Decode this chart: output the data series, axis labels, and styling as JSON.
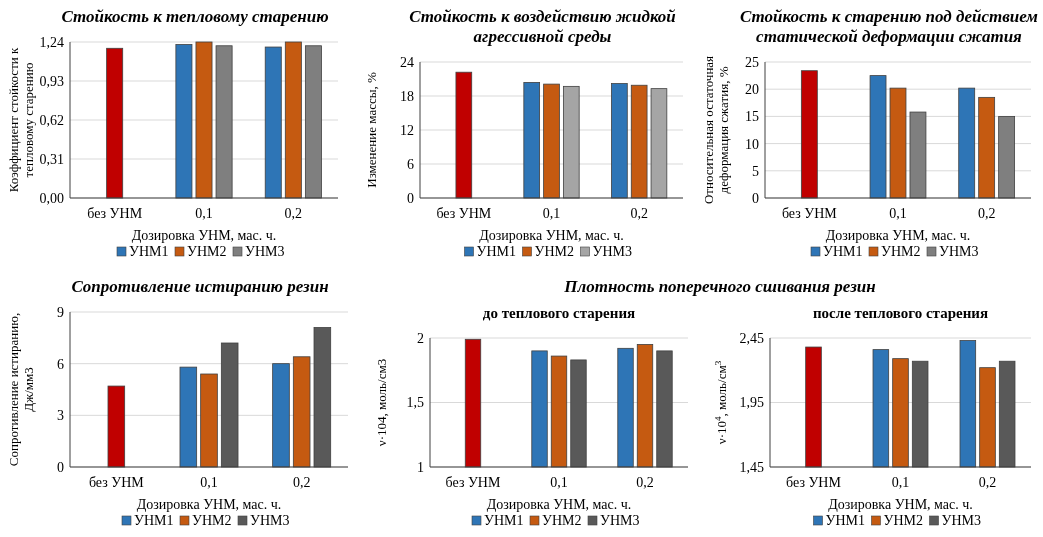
{
  "chart_data": [
    {
      "type": "bar",
      "title": "Стойкость к тепловому старению",
      "xlabel": "Дозировка УНМ, мас. ч.",
      "ylabel": "Коэффициент стойкости к тепловому старению",
      "categories": [
        "без УНМ",
        "0,1",
        "0,2"
      ],
      "series": [
        {
          "color": "#c00000",
          "values": [
            1.19,
            null,
            null
          ]
        },
        {
          "name": "УНМ1",
          "color": "#2e75b6",
          "values": [
            null,
            1.22,
            1.2
          ]
        },
        {
          "name": "УНМ2",
          "color": "#c55a11",
          "values": [
            null,
            1.24,
            1.24
          ]
        },
        {
          "name": "УНМ3",
          "color": "#7f7f7f",
          "values": [
            null,
            1.21,
            1.21
          ]
        }
      ],
      "ylim": [
        0,
        1.24
      ],
      "yticks": [
        {
          "value": 0,
          "label": "0,00"
        },
        {
          "value": 0.31,
          "label": "0,31"
        },
        {
          "value": 0.62,
          "label": "0,62"
        },
        {
          "value": 0.93,
          "label": "0,93"
        },
        {
          "value": 1.24,
          "label": "1,24"
        }
      ],
      "grid": "y",
      "legend": "bottom"
    },
    {
      "type": "bar",
      "title": "Стойкость к воздействию жидкой агрессивной среды",
      "xlabel": "Дозировка УНМ, мас. ч.",
      "ylabel": "Изменение массы, %",
      "categories": [
        "без УНМ",
        "0,1",
        "0,2"
      ],
      "series": [
        {
          "color": "#c00000",
          "values": [
            22.2,
            null,
            null
          ]
        },
        {
          "name": "УНМ1",
          "color": "#2e75b6",
          "values": [
            null,
            20.4,
            20.2
          ]
        },
        {
          "name": "УНМ2",
          "color": "#c55a11",
          "values": [
            null,
            20.1,
            19.9
          ]
        },
        {
          "name": "УНМ3",
          "color": "#a5a5a5",
          "values": [
            null,
            19.7,
            19.3
          ]
        }
      ],
      "ylim": [
        0,
        24
      ],
      "yticks": [
        0,
        6,
        12,
        18,
        24
      ],
      "grid": "y",
      "legend": "bottom"
    },
    {
      "type": "bar",
      "title": "Стойкость к старению под действием статической деформации сжатия",
      "xlabel": "Дозировка УНМ, мас. ч.",
      "ylabel": "Относительная остаточная деформация сжатия, %",
      "categories": [
        "без УНМ",
        "0,1",
        "0,2"
      ],
      "series": [
        {
          "color": "#c00000",
          "values": [
            23.4,
            null,
            null
          ]
        },
        {
          "name": "УНМ1",
          "color": "#2e75b6",
          "values": [
            null,
            22.5,
            20.2
          ]
        },
        {
          "name": "УНМ2",
          "color": "#c55a11",
          "values": [
            null,
            20.2,
            18.5
          ]
        },
        {
          "name": "УНМ3",
          "color": "#7f7f7f",
          "values": [
            null,
            15.8,
            15.0
          ]
        }
      ],
      "ylim": [
        0,
        25
      ],
      "yticks": [
        0,
        5,
        10,
        15,
        20,
        25
      ],
      "grid": "y",
      "legend": "bottom"
    },
    {
      "type": "bar",
      "title": "Сопротивление истиранию резин",
      "xlabel": "Дозировка УНМ, мас. ч.",
      "ylabel": "Сопротивление истиранию, Дж/мм3",
      "categories": [
        "без УНМ",
        "0,1",
        "0,2"
      ],
      "series": [
        {
          "color": "#c00000",
          "values": [
            4.7,
            null,
            null
          ]
        },
        {
          "name": "УНМ1",
          "color": "#2e75b6",
          "values": [
            null,
            5.8,
            6.0
          ]
        },
        {
          "name": "УНМ2",
          "color": "#c55a11",
          "values": [
            null,
            5.4,
            6.4
          ]
        },
        {
          "name": "УНМ3",
          "color": "#595959",
          "values": [
            null,
            7.2,
            8.1
          ]
        }
      ],
      "ylim": [
        0,
        9
      ],
      "yticks": [
        0,
        3,
        6,
        9
      ],
      "grid": "y",
      "legend": "bottom"
    },
    {
      "type": "bar",
      "title": "Плотность поперечного сшивания резин",
      "subtitle": "до теплового старения",
      "xlabel": "Дозировка УНМ, мас. ч.",
      "ylabel": "ν·104, моль/см3",
      "categories": [
        "без УНМ",
        "0,1",
        "0,2"
      ],
      "series": [
        {
          "color": "#c00000",
          "values": [
            1.99,
            null,
            null
          ]
        },
        {
          "name": "УНМ1",
          "color": "#2e75b6",
          "values": [
            null,
            1.9,
            1.92
          ]
        },
        {
          "name": "УНМ2",
          "color": "#c55a11",
          "values": [
            null,
            1.86,
            1.95
          ]
        },
        {
          "name": "УНМ3",
          "color": "#595959",
          "values": [
            null,
            1.83,
            1.9
          ]
        }
      ],
      "ylim": [
        1,
        2
      ],
      "yticks": [
        1,
        {
          "value": 1.5,
          "label": "1,5"
        },
        2
      ],
      "grid": "y",
      "legend": "bottom"
    },
    {
      "type": "bar",
      "subtitle": "после теплового старения",
      "xlabel": "Дозировка УНМ, мас. ч.",
      "ylabel": "ν·10$^{4}$, моль/см$^{3}$",
      "categories": [
        "без УНМ",
        "0,1",
        "0,2"
      ],
      "series": [
        {
          "color": "#c00000",
          "values": [
            2.38,
            null,
            null
          ]
        },
        {
          "name": "УНМ1",
          "color": "#2e75b6",
          "values": [
            null,
            2.36,
            2.43
          ]
        },
        {
          "name": "УНМ2",
          "color": "#c55a11",
          "values": [
            null,
            2.29,
            2.22
          ]
        },
        {
          "name": "УНМ3",
          "color": "#595959",
          "values": [
            null,
            2.27,
            2.27
          ]
        }
      ],
      "ylim": [
        1.45,
        2.45
      ],
      "yticks": [
        {
          "value": 1.45,
          "label": "1,45"
        },
        {
          "value": 1.95,
          "label": "1,95"
        },
        {
          "value": 2.45,
          "label": "2,45"
        }
      ],
      "grid": "y",
      "legend": "bottom"
    }
  ]
}
